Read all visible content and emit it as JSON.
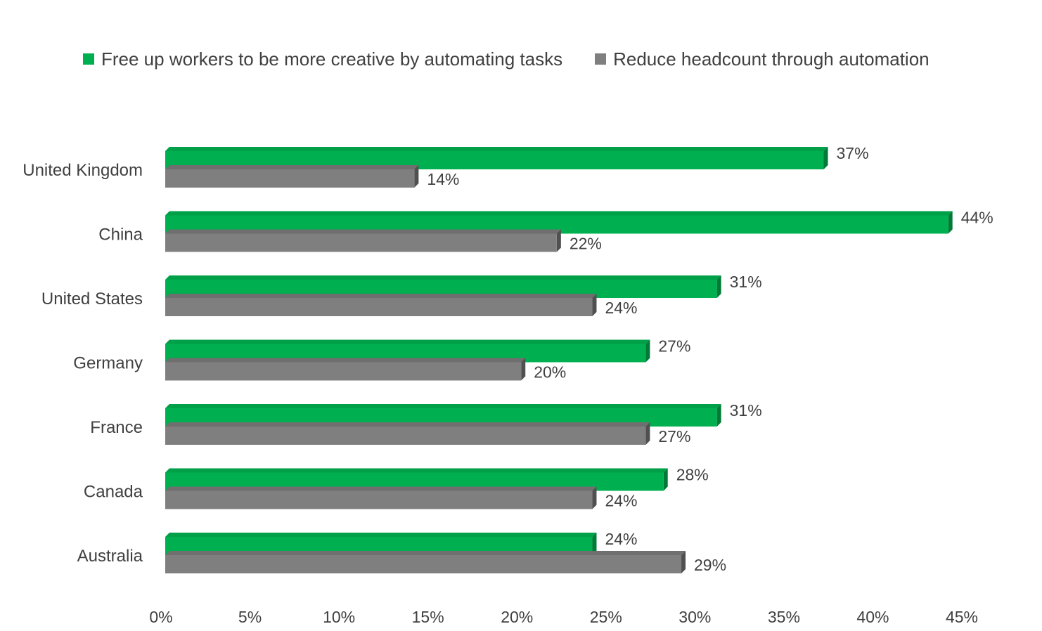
{
  "chart_data": {
    "type": "bar",
    "orientation": "horizontal",
    "categories": [
      "United Kingdom",
      "China",
      "United States",
      "Germany",
      "France",
      "Canada",
      "Australia"
    ],
    "series": [
      {
        "name": "Free up workers to be more creative by automating tasks",
        "color": "#00b050",
        "values": [
          37,
          44,
          31,
          27,
          31,
          28,
          24
        ],
        "labels": [
          "37%",
          "44%",
          "31%",
          "27%",
          "31%",
          "28%",
          "24%"
        ]
      },
      {
        "name": "Reduce headcount through automation",
        "color": "#7f7f7f",
        "values": [
          14,
          22,
          24,
          20,
          27,
          24,
          29
        ],
        "labels": [
          "14%",
          "22%",
          "24%",
          "20%",
          "27%",
          "24%",
          "29%"
        ]
      }
    ],
    "xlim": [
      0,
      45
    ],
    "x_ticks": [
      "0%",
      "5%",
      "10%",
      "15%",
      "20%",
      "25%",
      "30%",
      "35%",
      "40%",
      "45%"
    ],
    "legend_position": "top",
    "grid": false
  }
}
